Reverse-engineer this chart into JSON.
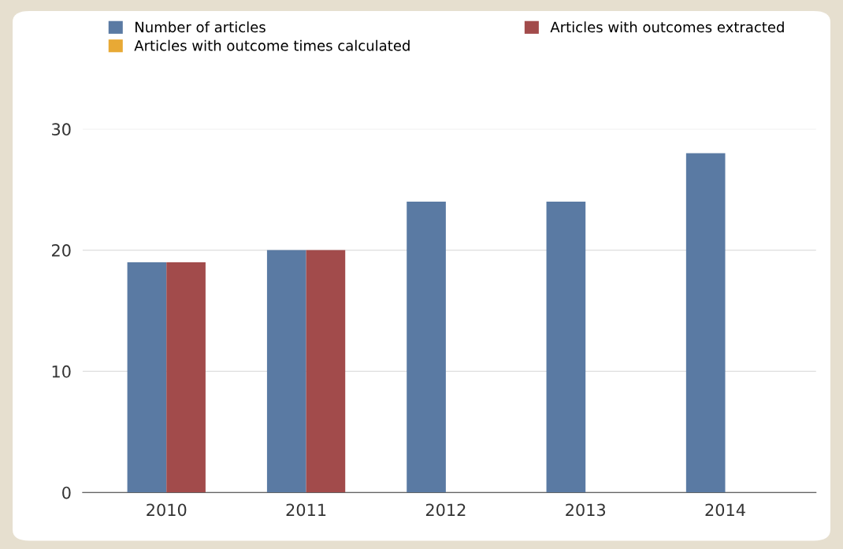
{
  "chart_data": {
    "type": "bar",
    "categories": [
      "2010",
      "2011",
      "2012",
      "2013",
      "2014"
    ],
    "series": [
      {
        "name": "Number of articles",
        "color": "#5a7aa3",
        "values": [
          19,
          20,
          24,
          24,
          28
        ]
      },
      {
        "name": "Articles with outcomes extracted",
        "color": "#a24b4b",
        "values": [
          19,
          20,
          null,
          null,
          null
        ]
      },
      {
        "name": "Articles with outcome times calculated",
        "color": "#e8a935",
        "values": [
          null,
          null,
          null,
          null,
          null
        ]
      }
    ],
    "ylim": [
      0,
      30
    ],
    "yticks": [
      0,
      10,
      20,
      30
    ],
    "grid": "y",
    "legend": "top"
  }
}
